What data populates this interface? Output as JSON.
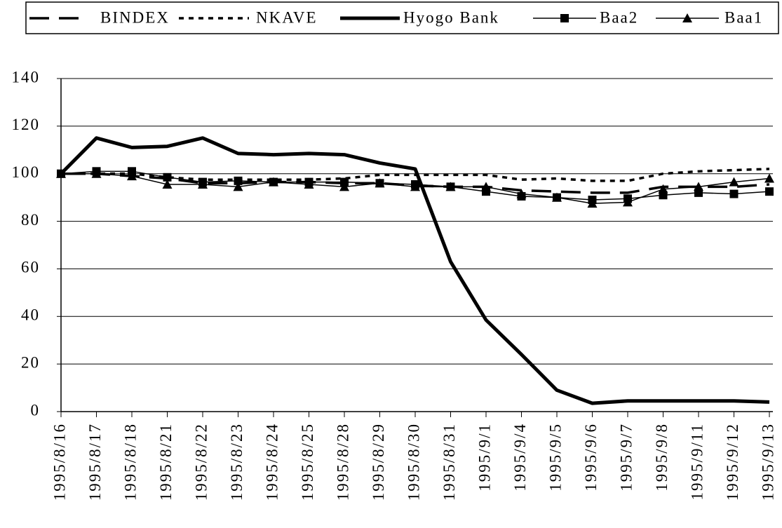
{
  "chart_data": {
    "type": "line",
    "categories": [
      "1995/8/16",
      "1995/8/17",
      "1995/8/18",
      "1995/8/21",
      "1995/8/22",
      "1995/8/23",
      "1995/8/24",
      "1995/8/25",
      "1995/8/28",
      "1995/8/29",
      "1995/8/30",
      "1995/8/31",
      "1995/9/1",
      "1995/9/4",
      "1995/9/5",
      "1995/9/6",
      "1995/9/7",
      "1995/9/8",
      "1995/9/11",
      "1995/9/12",
      "1995/9/13"
    ],
    "series": [
      {
        "name": "BINDEX",
        "color": "#000000",
        "line_style": "dashed",
        "values": [
          100,
          100,
          99,
          98,
          96,
          96,
          96.5,
          96.5,
          96,
          96,
          95,
          94.5,
          94.5,
          93,
          92.5,
          92,
          92,
          94.5,
          94.5,
          94.5,
          95.5
        ]
      },
      {
        "name": "NKAVE",
        "color": "#000000",
        "line_style": "dotted",
        "values": [
          100,
          100,
          100,
          98.5,
          97.5,
          97.5,
          97.5,
          97.5,
          98,
          99.5,
          99.5,
          99.5,
          99.5,
          97.5,
          98,
          97,
          97,
          100,
          101,
          101.5,
          102
        ]
      },
      {
        "name": "Hyogo Bank",
        "color": "#000000",
        "line_style": "thick",
        "values": [
          100,
          115,
          111,
          111.5,
          115,
          108.5,
          108,
          108.5,
          108,
          104.5,
          102,
          63,
          38.5,
          24,
          9,
          3.5,
          4.5,
          4.5,
          4.5,
          4.5,
          4
        ]
      },
      {
        "name": "Baa2",
        "color": "#000000",
        "line_style": "solid",
        "marker": "square",
        "values": [
          100,
          101,
          101,
          98.5,
          96.5,
          97,
          96.5,
          96.5,
          96.5,
          96,
          95.5,
          94.5,
          92.5,
          90.5,
          90,
          89,
          89.5,
          91,
          92,
          91.5,
          92.5
        ]
      },
      {
        "name": "Baa1",
        "color": "#000000",
        "line_style": "solid",
        "marker": "triangle",
        "values": [
          100,
          100,
          99,
          95.5,
          95.5,
          94.5,
          96.5,
          95.5,
          94.5,
          96,
          94.5,
          94.5,
          94.5,
          91.5,
          90,
          87.5,
          88,
          93.5,
          94.5,
          96.5,
          98
        ]
      }
    ],
    "ylim": [
      0,
      140
    ],
    "yticks": [
      0,
      20,
      40,
      60,
      80,
      100,
      120,
      140
    ],
    "grid": true,
    "legend": "top"
  }
}
